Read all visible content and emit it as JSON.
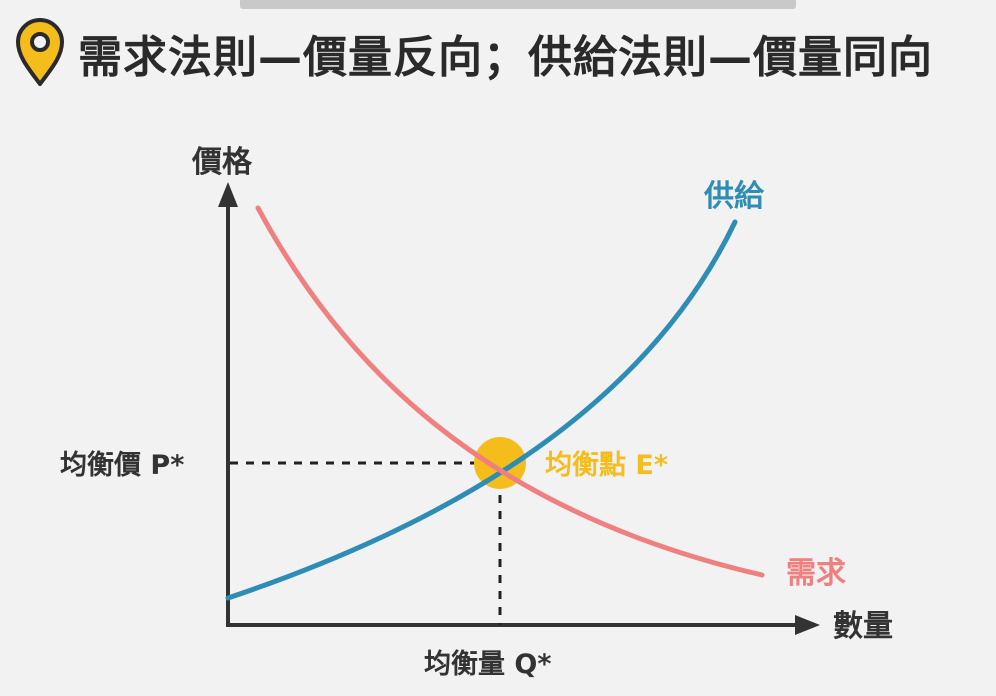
{
  "header": {
    "title": "需求法則—價量反向；供給法則—價量同向",
    "icon": "location-pin-icon"
  },
  "diagram": {
    "y_axis_label": "價格",
    "x_axis_label": "數量",
    "supply_label": "供給",
    "demand_label": "需求",
    "equilibrium_price_label": "均衡價 P*",
    "equilibrium_quantity_label": "均衡量 Q*",
    "equilibrium_point_label": "均衡點 E*"
  },
  "colors": {
    "supply": "#2f8db5",
    "demand": "#f07f7f",
    "equilibrium": "#f4bd1c",
    "axis": "#333333",
    "title": "#2a2a2a",
    "pin": "#f4bd1c"
  }
}
